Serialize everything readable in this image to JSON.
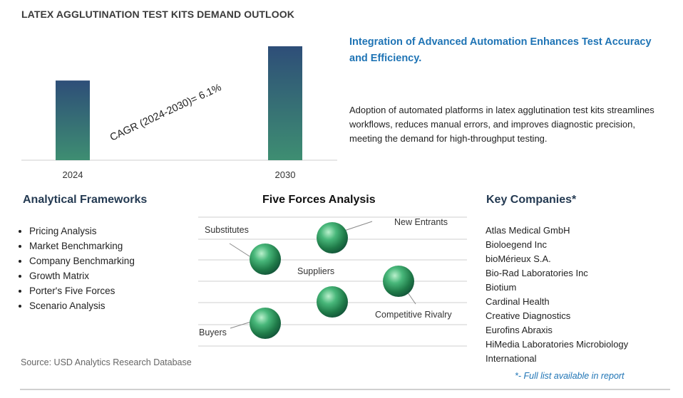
{
  "page": {
    "title": "LATEX AGGLUTINATION TEST KITS DEMAND OUTLOOK",
    "source": "Source: USD Analytics Research Database"
  },
  "chart_data": {
    "type": "bar",
    "categories": [
      "2024",
      "2030"
    ],
    "values": [
      1.0,
      1.43
    ],
    "annotation": "CAGR (2024-2030)=  6.1%",
    "grid": false,
    "colors": {
      "bar_top": "#2e4e78",
      "bar_bottom": "#3e8e72"
    }
  },
  "highlight": {
    "headline": "Integration of Advanced Automation Enhances Test Accuracy and Efficiency.",
    "description": "Adoption of automated platforms in latex agglutination test kits streamlines workflows, reduces manual errors, and improves diagnostic precision, meeting the demand for high-throughput testing."
  },
  "frameworks": {
    "heading": "Analytical Frameworks",
    "items": [
      "Pricing Analysis",
      "Market Benchmarking",
      "Company Benchmarking",
      "Growth Matrix",
      "Porter's Five Forces",
      "Scenario Analysis"
    ]
  },
  "five_forces": {
    "heading": "Five Forces Analysis",
    "labels": {
      "substitutes": "Substitutes",
      "new_entrants": "New Entrants",
      "suppliers": "Suppliers",
      "competitive_rivalry": "Competitive Rivalry",
      "buyers": "Buyers"
    },
    "sphere_color": "#3aa86a"
  },
  "companies": {
    "heading": "Key Companies*",
    "items": [
      "Atlas Medical GmbH",
      "Bioloegend Inc",
      "bioMérieux S.A.",
      "Bio-Rad Laboratories Inc",
      "Biotium",
      "Cardinal Health",
      "Creative Diagnostics",
      "Eurofins Abraxis",
      "HiMedia Laboratories Microbiology",
      "International"
    ],
    "note": "*- Full list available in report"
  }
}
